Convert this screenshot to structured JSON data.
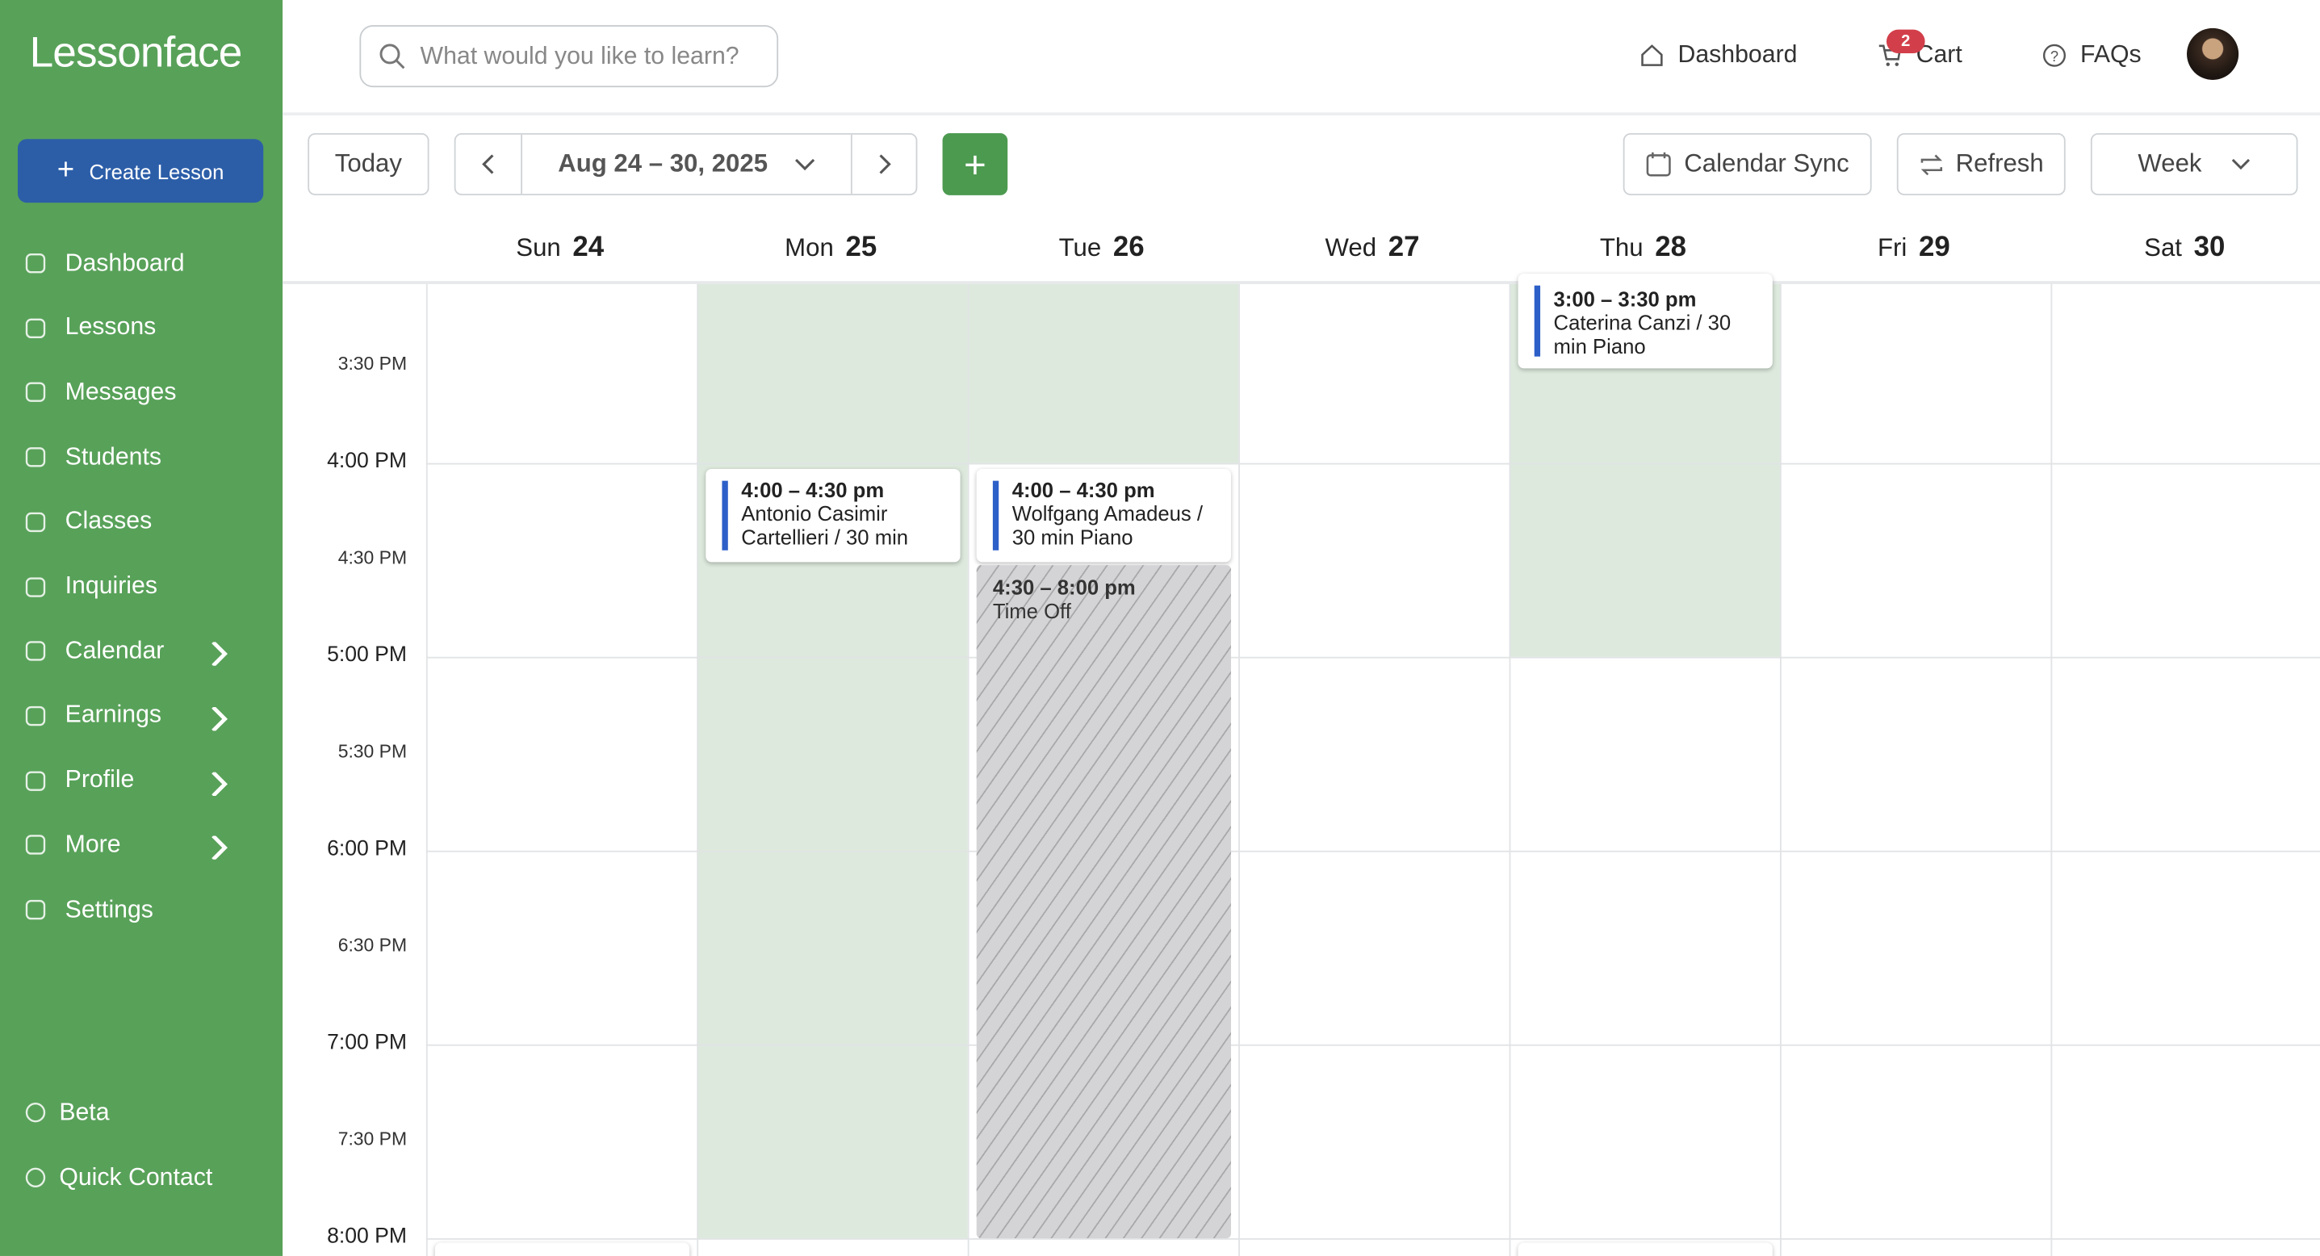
{
  "sidebar": {
    "brand": "Lessonface",
    "create_button": "Create Lesson",
    "nav": [
      "Dashboard",
      "Lessons",
      "Messages",
      "Students",
      "Classes",
      "Inquiries",
      "Calendar",
      "Earnings",
      "Profile",
      "More",
      "Settings"
    ],
    "footer": [
      "Beta",
      "Quick Contact"
    ]
  },
  "topbar": {
    "search_placeholder": "What would you like to learn?",
    "links": [
      "Dashboard",
      "Cart",
      "FAQs"
    ],
    "cart_badge": "2"
  },
  "toolbar": {
    "today": "Today",
    "range": "Aug 24 – 30, 2025",
    "calendar_sync": "Calendar Sync",
    "refresh": "Refresh",
    "view": "Week"
  },
  "days": [
    {
      "name": "Sun",
      "date": "24"
    },
    {
      "name": "Mon",
      "date": "25"
    },
    {
      "name": "Tue",
      "date": "26"
    },
    {
      "name": "Wed",
      "date": "27"
    },
    {
      "name": "Thu",
      "date": "28"
    },
    {
      "name": "Fri",
      "date": "29"
    },
    {
      "name": "Sat",
      "date": "30"
    }
  ],
  "time_labels": [
    "3:30 PM",
    "4:00 PM",
    "4:30 PM",
    "5:00 PM",
    "5:30 PM",
    "6:00 PM",
    "6:30 PM",
    "7:00 PM",
    "7:30 PM",
    "8:00 PM"
  ],
  "events": [
    {
      "time": "3:00 – 3:30 pm",
      "title": "Caterina Canzi / 30 min Piano"
    },
    {
      "time": "4:00 – 4:30 pm",
      "title": "Antonio Casimir Cartellieri / 30 min"
    },
    {
      "time": "4:00 – 4:30 pm",
      "title": "Wolfgang Amadeus / 30 min Piano"
    },
    {
      "time": "4:30 – 8:00 pm",
      "title": "Time Off"
    }
  ]
}
